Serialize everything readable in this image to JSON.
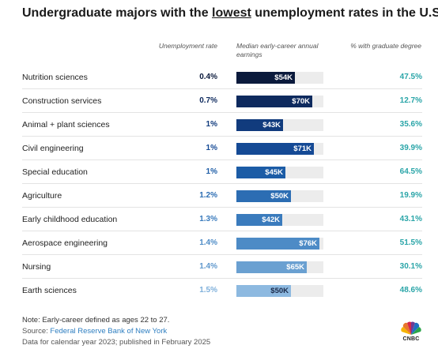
{
  "title": {
    "before": "Undergraduate majors with the ",
    "emphasis": "lowest",
    "after": " unemployment rates in the U.S."
  },
  "headers": {
    "unemployment": "Unemployment rate",
    "earnings": "Median early-career annual earnings",
    "graduate": "% with graduate degree"
  },
  "chart_data": {
    "type": "table",
    "earnings_scale_max": 80,
    "rows": [
      {
        "major": "Nutrition sciences",
        "unemployment_rate": "0.4%",
        "earnings_k": 54,
        "earnings_label": "$54K",
        "grad_degree": "47.5%",
        "color": "#0b1a3c",
        "unemp_color": "#0b1a3c"
      },
      {
        "major": "Construction services",
        "unemployment_rate": "0.7%",
        "earnings_k": 70,
        "earnings_label": "$70K",
        "grad_degree": "12.7%",
        "color": "#0e2a5e",
        "unemp_color": "#0e2a5e"
      },
      {
        "major": "Animal + plant sciences",
        "unemployment_rate": "1%",
        "earnings_k": 43,
        "earnings_label": "$43K",
        "grad_degree": "35.6%",
        "color": "#113b7d",
        "unemp_color": "#113b7d"
      },
      {
        "major": "Civil engineering",
        "unemployment_rate": "1%",
        "earnings_k": 71,
        "earnings_label": "$71K",
        "grad_degree": "39.9%",
        "color": "#154a95",
        "unemp_color": "#154a95"
      },
      {
        "major": "Special education",
        "unemployment_rate": "1%",
        "earnings_k": 45,
        "earnings_label": "$45K",
        "grad_degree": "64.5%",
        "color": "#1c5ca6",
        "unemp_color": "#1c5ca6"
      },
      {
        "major": "Agriculture",
        "unemployment_rate": "1.2%",
        "earnings_k": 50,
        "earnings_label": "$50K",
        "grad_degree": "19.9%",
        "color": "#2c6db3",
        "unemp_color": "#2c6db3"
      },
      {
        "major": "Early childhood education",
        "unemployment_rate": "1.3%",
        "earnings_k": 42,
        "earnings_label": "$42K",
        "grad_degree": "43.1%",
        "color": "#3a7bbd",
        "unemp_color": "#3a7bbd"
      },
      {
        "major": "Aerospace engineering",
        "unemployment_rate": "1.4%",
        "earnings_k": 76,
        "earnings_label": "$76K",
        "grad_degree": "51.5%",
        "color": "#4d8bc6",
        "unemp_color": "#4d8bc6"
      },
      {
        "major": "Nursing",
        "unemployment_rate": "1.4%",
        "earnings_k": 65,
        "earnings_label": "$65K",
        "grad_degree": "30.1%",
        "color": "#6aa0d1",
        "unemp_color": "#5f98cd"
      },
      {
        "major": "Earth sciences",
        "unemployment_rate": "1.5%",
        "earnings_k": 50,
        "earnings_label": "$50K",
        "grad_degree": "48.6%",
        "color": "#8db9e0",
        "unemp_color": "#7fb0db",
        "label_dark": true
      }
    ]
  },
  "notes": {
    "note": "Note: Early-career defined as ages 22 to 27.",
    "source_prefix": "Source: ",
    "source_link": "Federal Reserve Bank of New York",
    "data_line": "Data for calendar year 2023; published in February 2025"
  },
  "logo": {
    "text": "CNBC",
    "icon": "cnbc-peacock-icon"
  },
  "colors": {
    "grad_text": "#2aa5a8",
    "track": "#ececec"
  }
}
